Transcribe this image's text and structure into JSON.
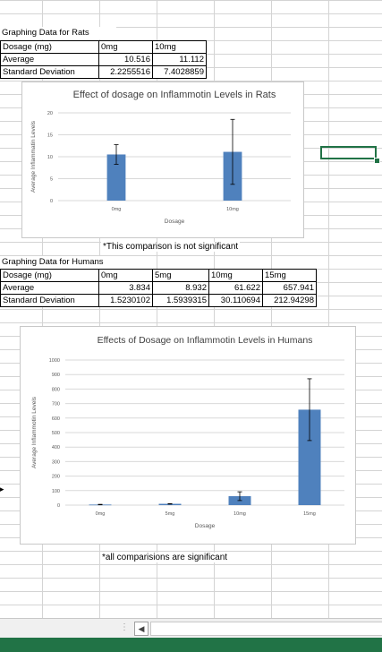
{
  "rats": {
    "section_title": "Graphing Data for Rats",
    "table": {
      "headers": [
        "Dosage (mg)",
        "0mg",
        "10mg"
      ],
      "rows": [
        [
          "Average",
          "10.516",
          "11.112"
        ],
        [
          "Standard Deviation",
          "2.2255516",
          "7.4028859"
        ]
      ]
    },
    "note": "*This comparison is not significant"
  },
  "humans": {
    "section_title": "Graphing Data for Humans",
    "table": {
      "headers": [
        "Dosage (mg)",
        "0mg",
        "5mg",
        "10mg",
        "15mg"
      ],
      "rows": [
        [
          "Average",
          "3.834",
          "8.932",
          "61.622",
          "657.941"
        ],
        [
          "Standard Deviation",
          "1.5230102",
          "1.5939315",
          "30.110694",
          "212.94298"
        ]
      ]
    },
    "note": "*all comparisions are significant"
  },
  "colors": {
    "bar": "#4f81bd",
    "accent": "#217346",
    "grid": "#d9d9d9",
    "axis_text": "#595959"
  },
  "chart_data": [
    {
      "type": "bar",
      "title": "Effect of dosage on Inflammotin Levels in Rats",
      "xlabel": "Dosage",
      "ylabel": "Average Inflammatin Levels",
      "categories": [
        "0mg",
        "10mg"
      ],
      "values": [
        10.516,
        11.112
      ],
      "error": [
        2.2255516,
        7.4028859
      ],
      "ylim": [
        0,
        20
      ],
      "yticks": [
        0,
        5,
        10,
        15,
        20
      ],
      "grid": true,
      "legend": "none"
    },
    {
      "type": "bar",
      "title": "Effects of Dosage on Inflammotin Levels in Humans",
      "xlabel": "Dosage",
      "ylabel": "Average Inflammotin Levels",
      "categories": [
        "0mg",
        "5mg",
        "10mg",
        "15mg"
      ],
      "values": [
        3.834,
        8.932,
        61.622,
        657.941
      ],
      "error": [
        1.5230102,
        1.5939315,
        30.110694,
        212.94298
      ],
      "ylim": [
        0,
        1000
      ],
      "yticks": [
        0,
        100,
        200,
        300,
        400,
        500,
        600,
        700,
        800,
        900,
        1000
      ],
      "grid": true,
      "legend": "none"
    }
  ]
}
